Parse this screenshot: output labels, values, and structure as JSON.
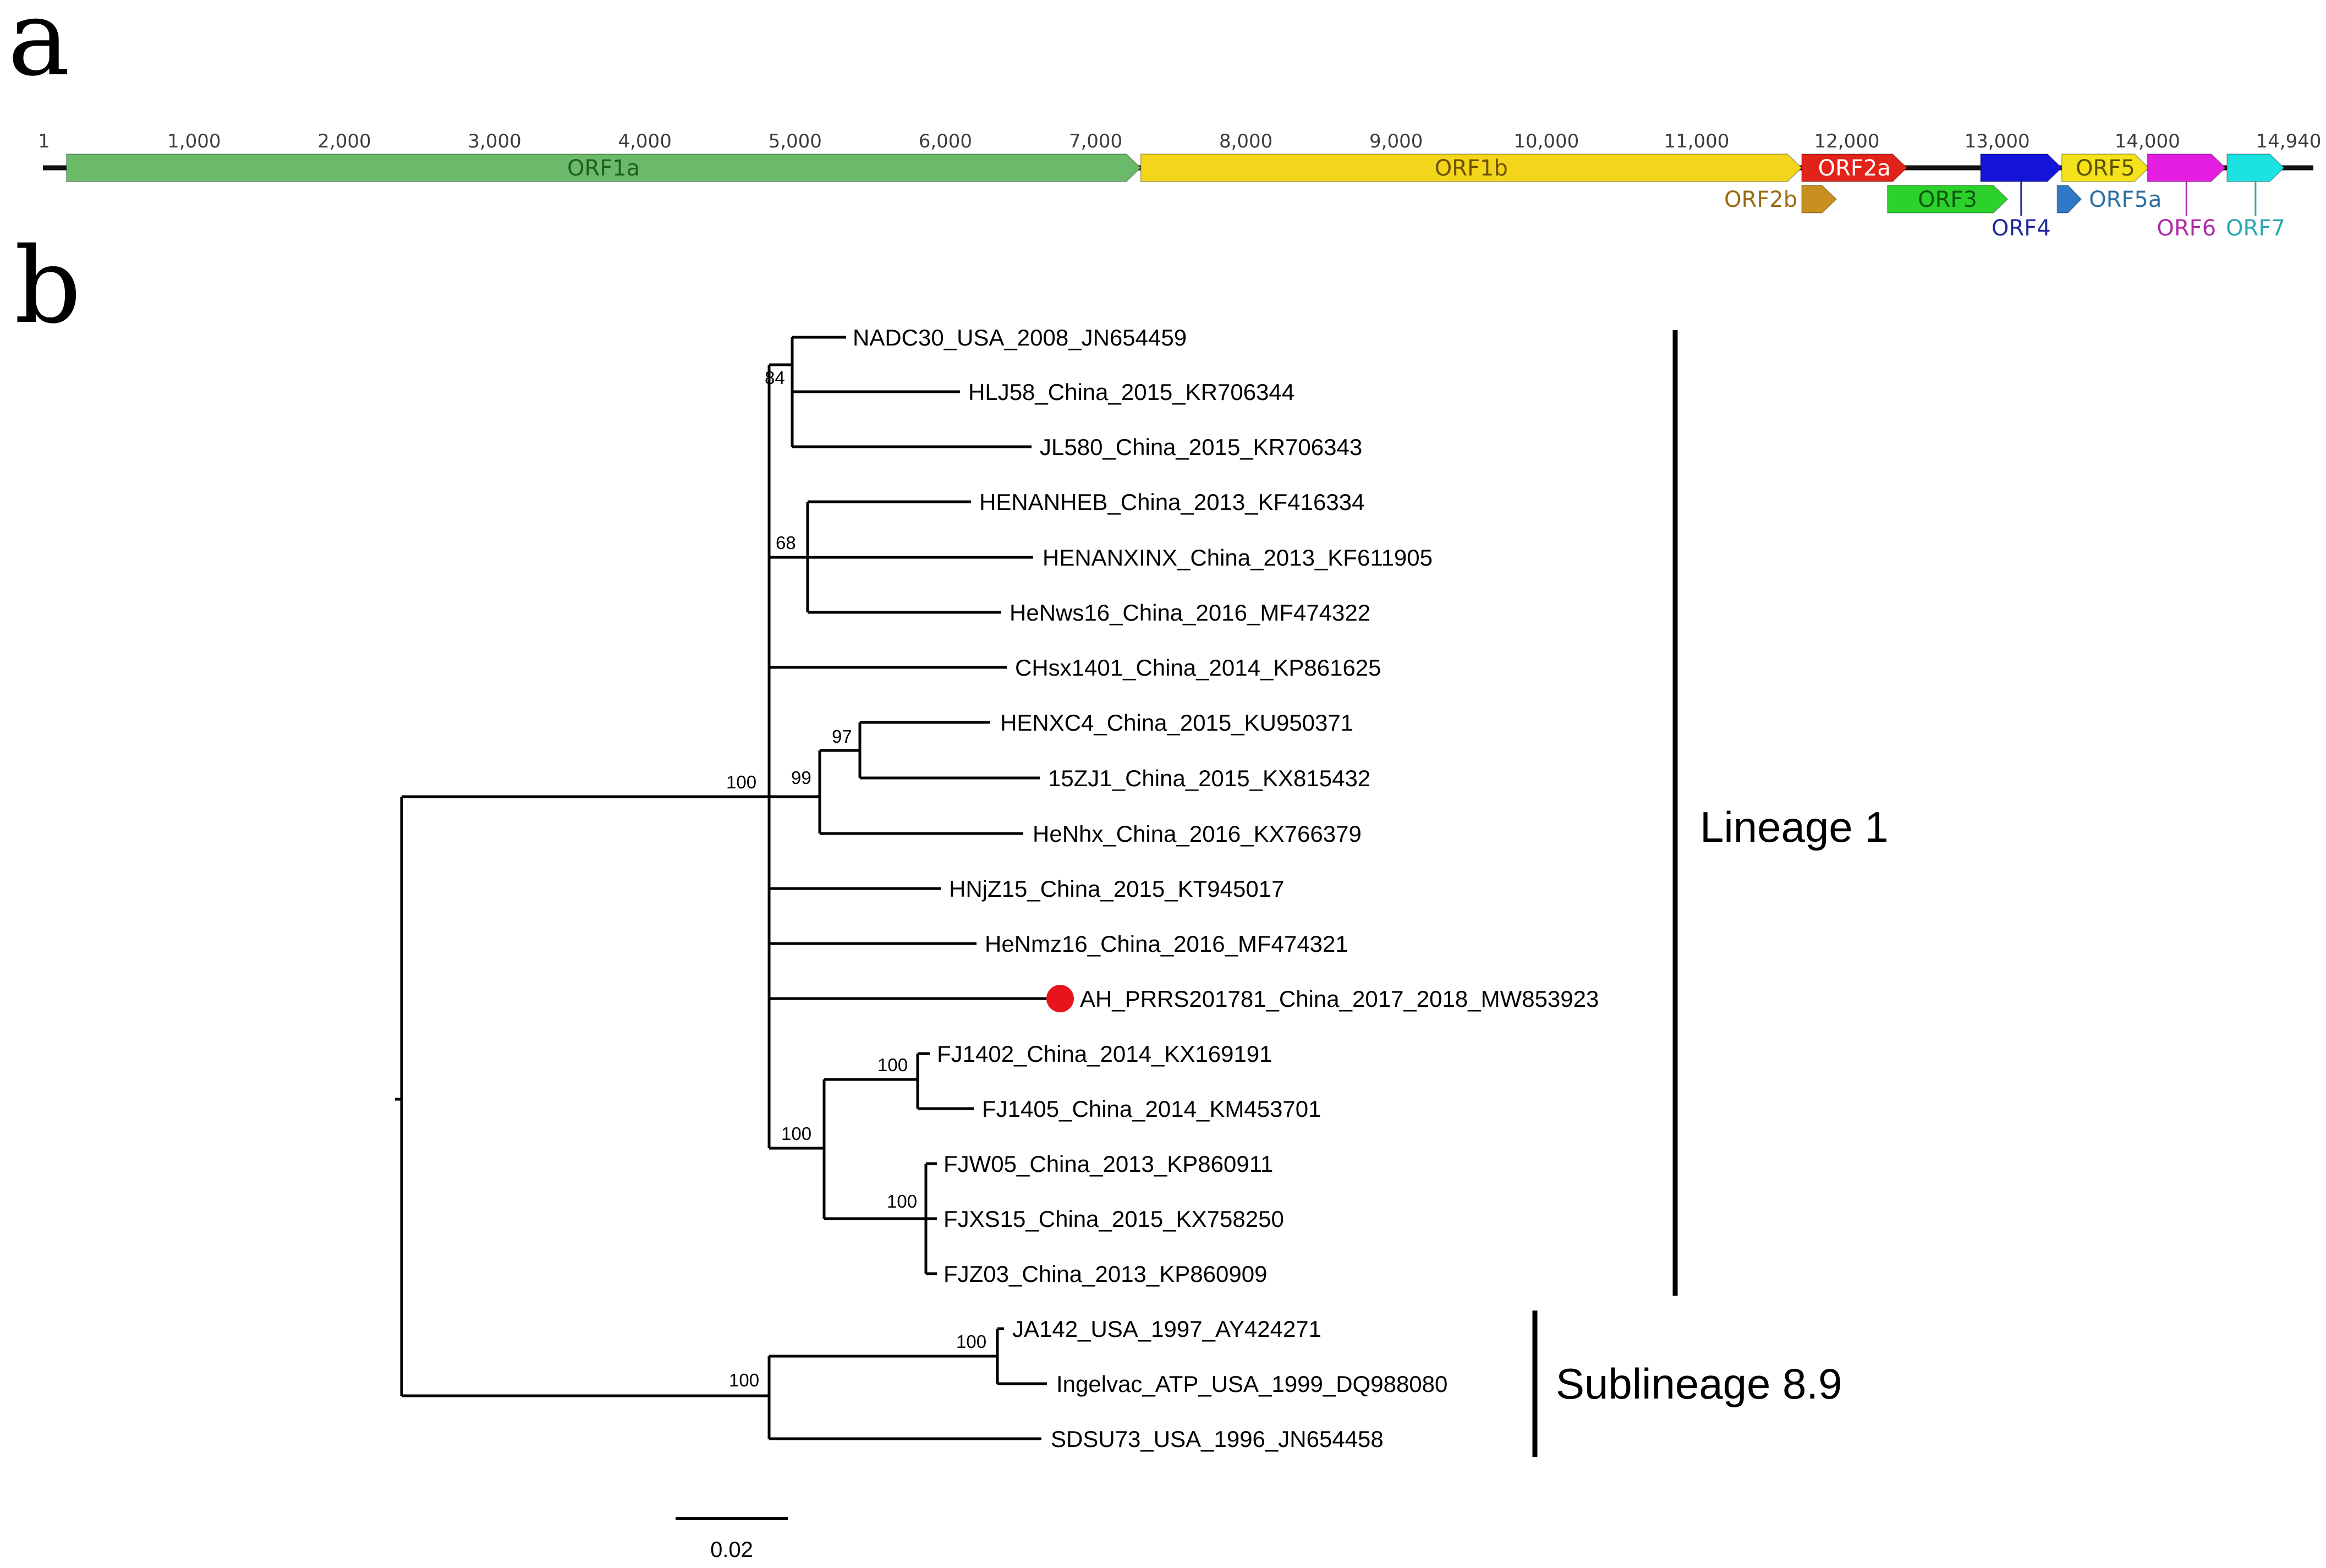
{
  "panels": {
    "a": "a",
    "b": "b"
  },
  "genome": {
    "start_label": "1",
    "ticks": [
      {
        "label": "1,000",
        "pos": 1000
      },
      {
        "label": "2,000",
        "pos": 2000
      },
      {
        "label": "3,000",
        "pos": 3000
      },
      {
        "label": "4,000",
        "pos": 4000
      },
      {
        "label": "5,000",
        "pos": 5000
      },
      {
        "label": "6,000",
        "pos": 6000
      },
      {
        "label": "7,000",
        "pos": 7000
      },
      {
        "label": "8,000",
        "pos": 8000
      },
      {
        "label": "9,000",
        "pos": 9000
      },
      {
        "label": "10,000",
        "pos": 10000
      },
      {
        "label": "11,000",
        "pos": 11000
      },
      {
        "label": "12,000",
        "pos": 12000
      },
      {
        "label": "13,000",
        "pos": 13000
      },
      {
        "label": "14,000",
        "pos": 14000
      },
      {
        "label": "14,940",
        "pos": 14940
      }
    ],
    "length": 14940,
    "orfs": [
      {
        "name": "ORF1a",
        "start": 150,
        "end": 7300,
        "row": 0,
        "color": "#6aba6a",
        "label_color": "#1f5f1f",
        "label_pos": "inside"
      },
      {
        "name": "ORF1b",
        "start": 7300,
        "end": 11700,
        "row": 0,
        "color": "#f3d51c",
        "label_color": "#6b5200",
        "label_pos": "inside"
      },
      {
        "name": "ORF2a",
        "start": 11700,
        "end": 12400,
        "row": 0,
        "color": "#e2231a",
        "label_color": "#ffffff",
        "label_pos": "inside"
      },
      {
        "name": "ORF2b",
        "start": 11700,
        "end": 11930,
        "row": 1,
        "color": "#c8901e",
        "label_color": "#9a6a10",
        "label_pos": "left"
      },
      {
        "name": "ORF3",
        "start": 12270,
        "end": 13070,
        "row": 1,
        "color": "#2cd12c",
        "label_color": "#0d550d",
        "label_pos": "inside"
      },
      {
        "name": "ORF4",
        "start": 12890,
        "end": 13430,
        "row": 0,
        "color": "#1414d8",
        "label_color": "#1f2a9a",
        "label_pos": "below"
      },
      {
        "name": "ORF5",
        "start": 13430,
        "end": 14010,
        "row": 0,
        "color": "#f3e21c",
        "label_color": "#5a5000",
        "label_pos": "inside"
      },
      {
        "name": "ORF5a",
        "start": 13400,
        "end": 13560,
        "row": 1,
        "color": "#2f78c8",
        "label_color": "#2f6fa0",
        "label_pos": "right"
      },
      {
        "name": "ORF6",
        "start": 14000,
        "end": 14520,
        "row": 0,
        "color": "#e41ee0",
        "label_color": "#b02aa8",
        "label_pos": "below"
      },
      {
        "name": "ORF7",
        "start": 14530,
        "end": 14910,
        "row": 0,
        "color": "#1ce2e2",
        "label_color": "#2aa7ae",
        "label_pos": "below"
      }
    ]
  },
  "tree": {
    "taxa": [
      "NADC30_USA_2008_JN654459",
      "HLJ58_China_2015_KR706344",
      "JL580_China_2015_KR706343",
      "HENANHEB_China_2013_KF416334",
      "HENANXINX_China_2013_KF611905",
      "HeNws16_China_2016_MF474322",
      "CHsx1401_China_2014_KP861625",
      "HENXC4_China_2015_KU950371",
      "15ZJ1_China_2015_KX815432",
      "HeNhx_China_2016_KX766379",
      "HNjZ15_China_2015_KT945017",
      "HeNmz16_China_2016_MF474321",
      "AH_PRRS201781_China_2017_2018_MW853923",
      "FJ1402_China_2014_KX169191",
      "FJ1405_China_2014_KM453701",
      "FJW05_China_2013_KP860911",
      "FJXS15_China_2015_KX758250",
      "FJZ03_China_2013_KP860909",
      "JA142_USA_1997_AY424271",
      "Ingelvac_ATP_USA_1999_DQ988080",
      "SDSU73_USA_1996_JN654458"
    ],
    "highlighted_taxon": "AH_PRRS201781_China_2017_2018_MW853923",
    "highlight_color": "#e8141c",
    "bootstraps": {
      "root_lineage1": "100",
      "nadc30_clade": "84",
      "henan_clade": "68",
      "henx_outer": "99",
      "henx_inner": "97",
      "fj_clade": "100",
      "fj14_clade": "100",
      "fjw_clade": "100",
      "sublineage89": "100",
      "ja142_clade": "100"
    },
    "groups": [
      {
        "label": "Lineage 1"
      },
      {
        "label": "Sublineage 8.9"
      }
    ],
    "scale_bar": {
      "label": "0.02",
      "value": 0.02
    }
  }
}
